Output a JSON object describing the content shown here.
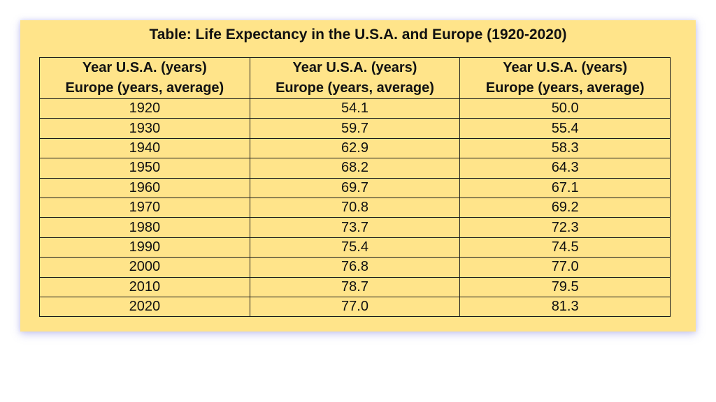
{
  "chart_data": {
    "type": "table",
    "title": "Table: Life Expectancy in the U.S.A. and Europe (1920-2020)",
    "headers": [
      [
        "Year U.S.A. (years)",
        "Europe (years, average)"
      ],
      [
        "Year U.S.A. (years)",
        "Europe (years, average)"
      ],
      [
        "Year U.S.A. (years)",
        "Europe (years, average)"
      ]
    ],
    "rows": [
      [
        "1920",
        "54.1",
        "50.0"
      ],
      [
        "1930",
        "59.7",
        "55.4"
      ],
      [
        "1940",
        "62.9",
        "58.3"
      ],
      [
        "1950",
        "68.2",
        "64.3"
      ],
      [
        "1960",
        "69.7",
        "67.1"
      ],
      [
        "1970",
        "70.8",
        "69.2"
      ],
      [
        "1980",
        "73.7",
        "72.3"
      ],
      [
        "1990",
        "75.4",
        "74.5"
      ],
      [
        "2000",
        "76.8",
        "77.0"
      ],
      [
        "2010",
        "78.7",
        "79.5"
      ],
      [
        "2020",
        "77.0",
        "81.3"
      ]
    ],
    "colors": {
      "panel_background": "#ffe48a",
      "border": "#1a1a1a"
    }
  }
}
